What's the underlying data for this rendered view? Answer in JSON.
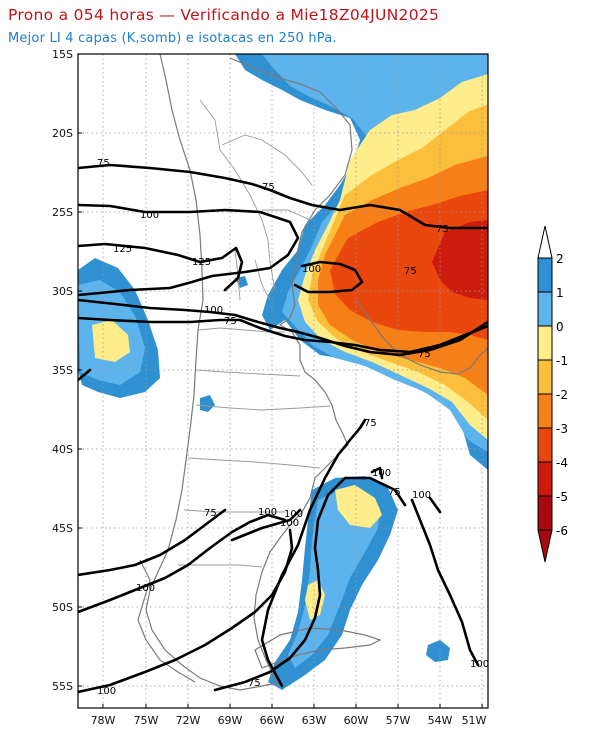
{
  "header": {
    "title": "Prono a 054 horas — Verificando a Mie18Z04JUN2025",
    "subtitle": "Mejor LI 4 capas (K,somb) e isotacas en 250 hPa."
  },
  "map": {
    "lat_ticks": [
      "15S",
      "20S",
      "25S",
      "30S",
      "35S",
      "40S",
      "45S",
      "50S",
      "55S"
    ],
    "lon_ticks": [
      "78W",
      "75W",
      "72W",
      "69W",
      "66W",
      "63W",
      "60W",
      "57W",
      "54W",
      "51W"
    ],
    "isotach_labels": [
      "75",
      "75",
      "100",
      "125",
      "125",
      "100",
      "100",
      "75",
      "75",
      "75",
      "75",
      "75",
      "100",
      "75",
      "100",
      "100",
      "75",
      "100",
      "100",
      "100",
      "100",
      "75",
      "100"
    ]
  },
  "colorbar": {
    "labels": [
      "2",
      "1",
      "0",
      "-1",
      "-2",
      "-3",
      "-4",
      "-5",
      "-6"
    ],
    "colors": {
      "above_2": "#ffffff",
      "1_to_2": "#2f91d2",
      "0_to_1": "#5db4ec",
      "m1_to_0": "#ffec8a",
      "m2_to_m1": "#fbbf3c",
      "m3_to_m2": "#f77f17",
      "m4_to_m3": "#e9470d",
      "m5_to_m4": "#cd1b0d",
      "m6_to_m5": "#a7090f",
      "below_m6": "#a7090f"
    }
  }
}
